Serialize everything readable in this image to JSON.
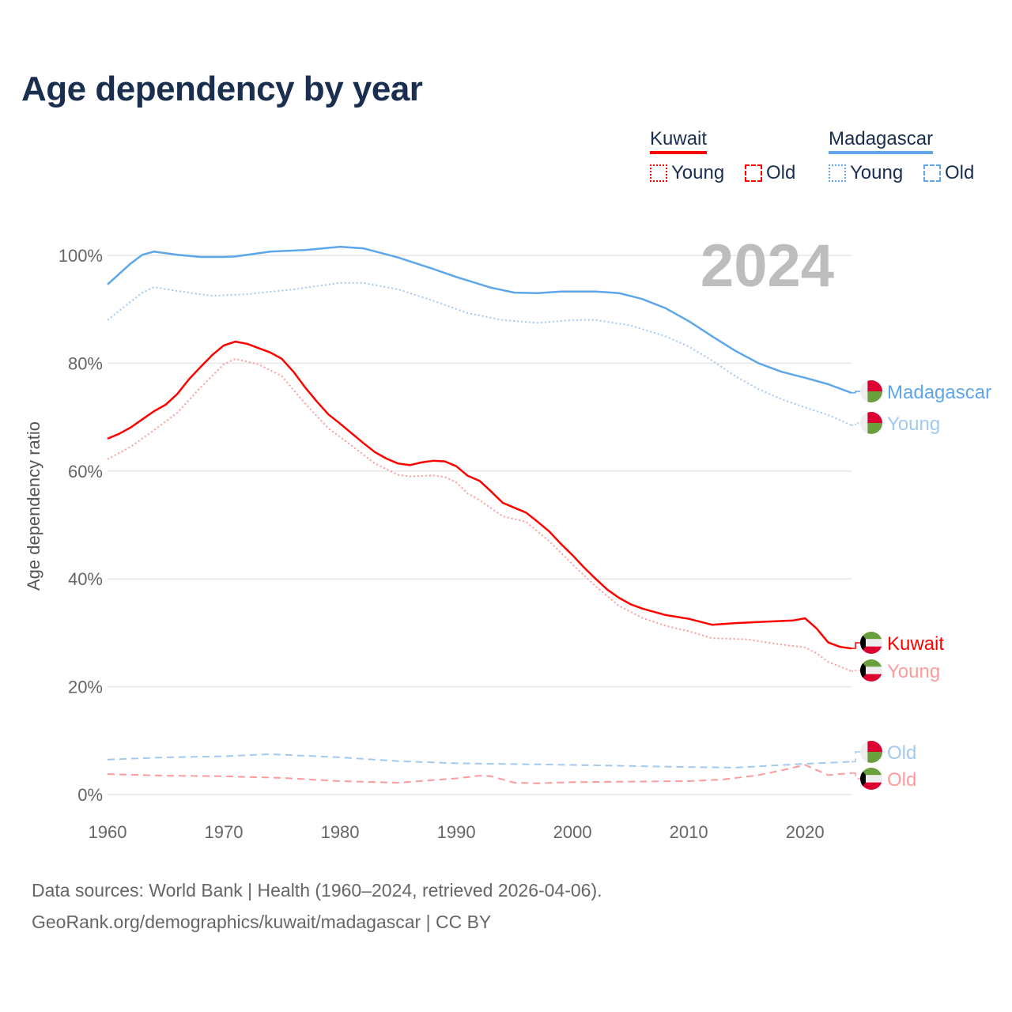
{
  "chart_data": {
    "type": "line",
    "title": "Age dependency by year",
    "ylabel": "Age dependency ratio",
    "xlabel": "",
    "xlim": [
      1960,
      2024
    ],
    "ylim": [
      0,
      100
    ],
    "x_ticks": [
      "1960",
      "1970",
      "1980",
      "1990",
      "2000",
      "2010",
      "2020"
    ],
    "y_ticks": [
      "0%",
      "20%",
      "40%",
      "60%",
      "80%",
      "100%"
    ],
    "year_annotation": "2024",
    "grid": true,
    "legend_placement": "top-right",
    "legend": {
      "groups": [
        {
          "name": "Kuwait",
          "items": [
            "Young",
            "Old"
          ]
        },
        {
          "name": "Madagascar",
          "items": [
            "Young",
            "Old"
          ]
        }
      ]
    },
    "series": [
      {
        "name": "Madagascar",
        "label": "Madagascar",
        "color": "#5ea6ea",
        "style": "solid",
        "x": [
          1960,
          1962,
          1963,
          1964,
          1966,
          1968,
          1970,
          1971,
          1974,
          1977,
          1980,
          1982,
          1985,
          1988,
          1990,
          1993,
          1995,
          1997,
          1999,
          2002,
          2004,
          2006,
          2008,
          2010,
          2012,
          2014,
          2016,
          2018,
          2020,
          2022,
          2024
        ],
        "y": [
          94.6,
          98.5,
          100.1,
          100.7,
          100.1,
          99.7,
          99.7,
          99.8,
          100.7,
          101,
          101.6,
          101.3,
          99.6,
          97.5,
          96,
          94,
          93.1,
          93,
          93.3,
          93.3,
          93,
          91.9,
          90.2,
          87.8,
          85,
          82.3,
          80,
          78.4,
          77.3,
          76.1,
          74.5
        ]
      },
      {
        "name": "Madagascar Young",
        "label": "Young",
        "color": "#a3c9f0",
        "style": "dotted",
        "x": [
          1960,
          1963,
          1964,
          1966,
          1969,
          1972,
          1976,
          1980,
          1982,
          1985,
          1988,
          1991,
          1994,
          1997,
          2000,
          2002,
          2005,
          2008,
          2010,
          2012,
          2014,
          2016,
          2018,
          2020,
          2022,
          2024
        ],
        "y": [
          88,
          93.1,
          94.1,
          93.4,
          92.5,
          92.8,
          93.7,
          94.9,
          94.9,
          93.7,
          91.6,
          89.3,
          88,
          87.5,
          88,
          88,
          87,
          85,
          83.1,
          80.5,
          77.6,
          75.2,
          73.3,
          71.8,
          70.4,
          68.5
        ]
      },
      {
        "name": "Madagascar Old",
        "label": "Old",
        "color": "#a3c9f0",
        "style": "dashed",
        "x": [
          1960,
          1965,
          1970,
          1974,
          1980,
          1985,
          1990,
          2000,
          2010,
          2014,
          2020,
          2024
        ],
        "y": [
          6.5,
          6.9,
          7.1,
          7.5,
          6.9,
          6.2,
          5.8,
          5.5,
          5.1,
          5.0,
          5.7,
          6.1
        ]
      },
      {
        "name": "Kuwait",
        "label": "Kuwait",
        "color": "#ff0000",
        "style": "solid",
        "x": [
          1960,
          1961,
          1962,
          1963,
          1964,
          1965,
          1966,
          1967,
          1968,
          1969,
          1970,
          1971,
          1972,
          1973,
          1974,
          1975,
          1976,
          1977,
          1978,
          1979,
          1980,
          1981,
          1982,
          1983,
          1984,
          1985,
          1986,
          1987,
          1988,
          1989,
          1990,
          1991,
          1992,
          1993,
          1994,
          1995,
          1996,
          1997,
          1998,
          1999,
          2000,
          2001,
          2002,
          2003,
          2004,
          2005,
          2006,
          2007,
          2008,
          2010,
          2012,
          2014,
          2016,
          2019,
          2020,
          2021,
          2022,
          2023,
          2024
        ],
        "y": [
          66,
          66.9,
          68.1,
          69.6,
          71.1,
          72.3,
          74.3,
          77,
          79.3,
          81.5,
          83.3,
          84,
          83.6,
          82.8,
          82,
          80.8,
          78.4,
          75.5,
          72.9,
          70.5,
          68.8,
          67,
          65.2,
          63.5,
          62.3,
          61.4,
          61.1,
          61.6,
          61.9,
          61.8,
          60.9,
          59.1,
          58.2,
          56.2,
          54.1,
          53.2,
          52.3,
          50.6,
          48.8,
          46.5,
          44.4,
          42.1,
          40,
          38,
          36.5,
          35.3,
          34.5,
          33.9,
          33.3,
          32.6,
          31.5,
          31.8,
          32,
          32.3,
          32.7,
          30.8,
          28.2,
          27.4,
          27.1
        ]
      },
      {
        "name": "Kuwait Young",
        "label": "Young",
        "color": "#ff9b9b",
        "style": "dotted",
        "x": [
          1960,
          1962,
          1964,
          1966,
          1968,
          1970,
          1971,
          1973,
          1975,
          1977,
          1979,
          1981,
          1983,
          1985,
          1986,
          1988,
          1989,
          1990,
          1991,
          1992,
          1994,
          1996,
          1998,
          2000,
          2002,
          2004,
          2006,
          2008,
          2010,
          2012,
          2015,
          2018,
          2020,
          2021,
          2022,
          2024
        ],
        "y": [
          62.2,
          64.5,
          67.6,
          70.8,
          75.5,
          79.8,
          80.8,
          79.8,
          77.6,
          72.5,
          67.9,
          64.7,
          61.4,
          59.3,
          59,
          59.2,
          58.9,
          57.9,
          55.8,
          54.6,
          51.6,
          50.6,
          47,
          42.7,
          38.6,
          35,
          32.8,
          31.3,
          30.3,
          29,
          28.8,
          27.8,
          27.3,
          26.2,
          24.6,
          22.9
        ]
      },
      {
        "name": "Kuwait Old",
        "label": "Old",
        "color": "#ff9b9b",
        "style": "dashed",
        "x": [
          1960,
          1965,
          1970,
          1975,
          1980,
          1985,
          1990,
          1992,
          1993,
          1995,
          1997,
          2000,
          2005,
          2010,
          2013,
          2016,
          2018,
          2020,
          2022,
          2024
        ],
        "y": [
          3.8,
          3.5,
          3.4,
          3.1,
          2.5,
          2.2,
          3,
          3.5,
          3.4,
          2.2,
          2.1,
          2.3,
          2.4,
          2.5,
          2.8,
          3.6,
          4.5,
          5.5,
          3.6,
          4.0
        ]
      }
    ],
    "end_labels": [
      {
        "text": "Madagascar",
        "color": "#5ea6ea",
        "flag": "madagascar"
      },
      {
        "text": "Young",
        "color": "#a3c9f0",
        "flag": "madagascar"
      },
      {
        "text": "Kuwait",
        "color": "#ff0000",
        "flag": "kuwait"
      },
      {
        "text": "Young",
        "color": "#ff9b9b",
        "flag": "kuwait"
      },
      {
        "text": "Old",
        "color": "#a3c9f0",
        "flag": "madagascar"
      },
      {
        "text": "Old",
        "color": "#ff9b9b",
        "flag": "kuwait"
      }
    ]
  },
  "footer": {
    "line1": "Data sources: World Bank | Health (1960–2024, retrieved 2026-04-06).",
    "line2": "GeoRank.org/demographics/kuwait/madagascar | CC BY"
  }
}
